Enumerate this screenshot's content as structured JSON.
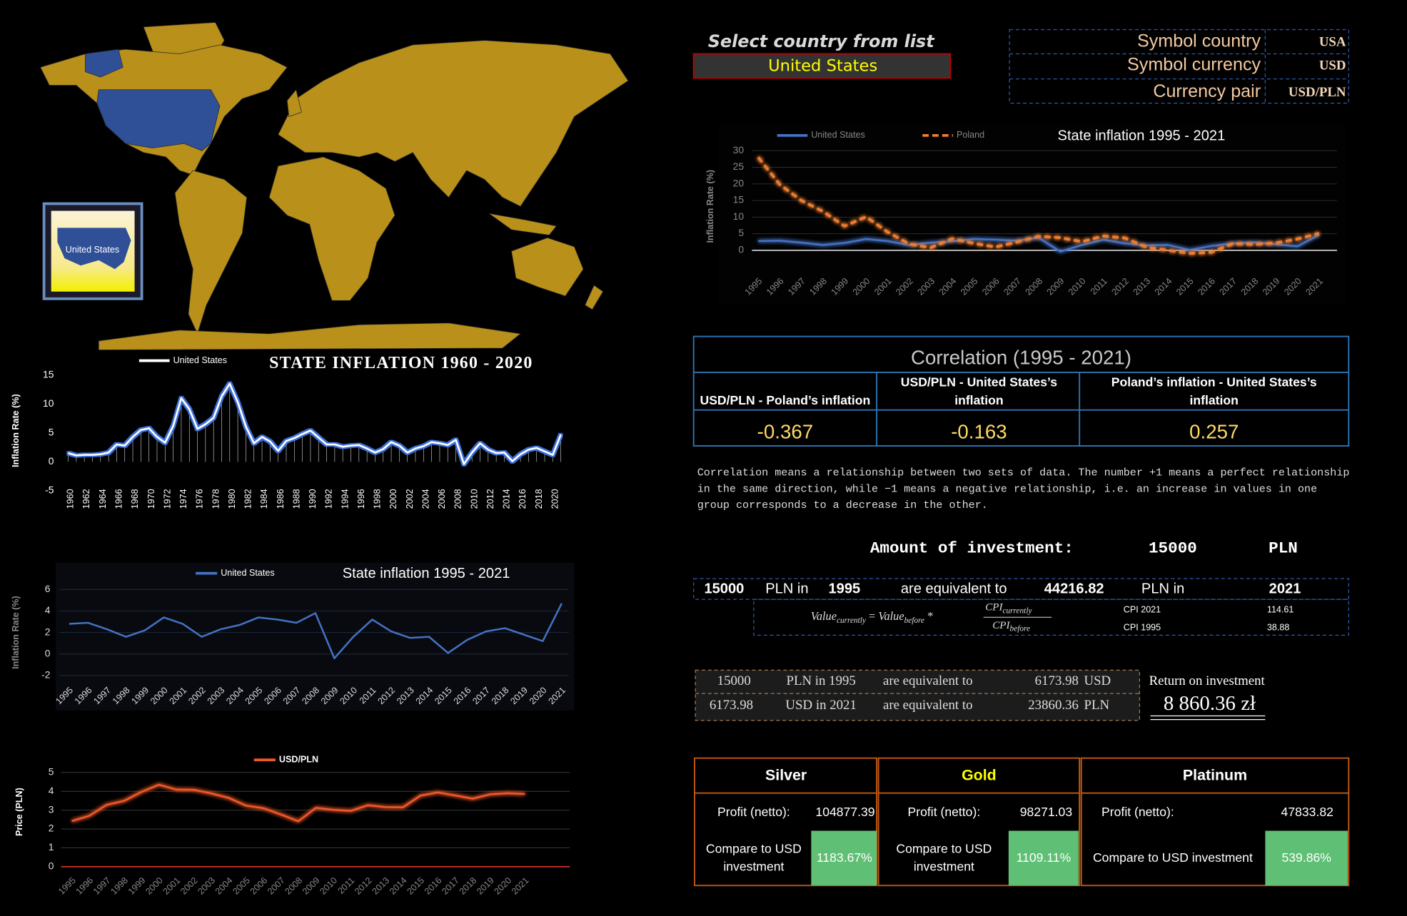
{
  "chart_data": [
    {
      "type": "line",
      "title": "STATE INFLATION 1960 - 2020",
      "y_label": "Inflation Rate (%)",
      "categories": [
        "1960",
        null,
        "1962",
        null,
        "1964",
        null,
        "1966",
        null,
        "1968",
        null,
        "1970",
        null,
        "1972",
        null,
        "1974",
        null,
        "1976",
        null,
        "1978",
        null,
        "1980",
        null,
        "1982",
        null,
        "1984",
        null,
        "1986",
        null,
        "1988",
        null,
        "1990",
        null,
        "1992",
        null,
        "1994",
        null,
        "1996",
        null,
        "1998",
        null,
        "2000",
        null,
        "2002",
        null,
        "2004",
        null,
        "2006",
        null,
        "2008",
        null,
        "2010",
        null,
        "2012",
        null,
        "2014",
        null,
        "2016",
        null,
        "2018",
        null,
        "2020",
        null
      ],
      "series": [
        {
          "name": "United States",
          "color": "#ffffff",
          "values": [
            1.5,
            1.1,
            1.2,
            1.2,
            1.3,
            1.6,
            3.0,
            2.8,
            4.3,
            5.5,
            5.8,
            4.3,
            3.3,
            6.2,
            11.0,
            9.1,
            5.7,
            6.5,
            7.6,
            11.3,
            13.5,
            10.3,
            6.1,
            3.2,
            4.3,
            3.5,
            1.9,
            3.6,
            4.1,
            4.8,
            5.4,
            4.2,
            3.0,
            3.0,
            2.6,
            2.8,
            2.9,
            2.3,
            1.6,
            2.2,
            3.4,
            2.8,
            1.6,
            2.3,
            2.7,
            3.4,
            3.2,
            2.9,
            3.8,
            -0.4,
            1.6,
            3.2,
            2.1,
            1.5,
            1.6,
            0.1,
            1.3,
            2.1,
            2.4,
            1.8,
            1.2,
            4.7
          ]
        }
      ],
      "ylim": [
        -5,
        15
      ],
      "yticks": [
        -5,
        0,
        5,
        10,
        15
      ],
      "grid": false,
      "drop_lines": true
    },
    {
      "type": "line",
      "title": "State inflation 1995 - 2021",
      "y_label": "Inflation Rate (%)",
      "categories": [
        "1995",
        "1996",
        "1997",
        "1998",
        "1999",
        "2000",
        "2001",
        "2002",
        "2003",
        "2004",
        "2005",
        "2006",
        "2007",
        "2008",
        "2009",
        "2010",
        "2011",
        "2012",
        "2013",
        "2014",
        "2015",
        "2016",
        "2017",
        "2018",
        "2019",
        "2020",
        "2021"
      ],
      "series": [
        {
          "name": "United States",
          "color": "#4472c4",
          "values": [
            2.8,
            2.9,
            2.3,
            1.6,
            2.2,
            3.4,
            2.8,
            1.6,
            2.3,
            2.7,
            3.4,
            3.2,
            2.9,
            3.8,
            -0.4,
            1.6,
            3.2,
            2.1,
            1.5,
            1.6,
            0.1,
            1.3,
            2.1,
            2.4,
            1.8,
            1.2,
            4.7
          ]
        }
      ],
      "ylim": [
        -2,
        6
      ],
      "yticks": [
        -2,
        0,
        2,
        4,
        6
      ],
      "grid": true
    },
    {
      "type": "line",
      "title": "State inflation 1995 - 2021",
      "y_label": "Inflation Rate (%)",
      "categories": [
        "1995",
        "1996",
        "1997",
        "1998",
        "1999",
        "2000",
        "2001",
        "2002",
        "2003",
        "2004",
        "2005",
        "2006",
        "2007",
        "2008",
        "2009",
        "2010",
        "2011",
        "2012",
        "2013",
        "2014",
        "2015",
        "2016",
        "2017",
        "2018",
        "2019",
        "2020",
        "2021"
      ],
      "series": [
        {
          "name": "United States",
          "color": "#4472c4",
          "values": [
            2.8,
            2.9,
            2.3,
            1.6,
            2.2,
            3.4,
            2.8,
            1.6,
            2.3,
            2.7,
            3.4,
            3.2,
            2.9,
            3.8,
            -0.4,
            1.6,
            3.2,
            2.1,
            1.5,
            1.6,
            0.1,
            1.3,
            2.1,
            2.4,
            1.8,
            1.2,
            4.7
          ]
        },
        {
          "name": "Poland",
          "color": "#ed7d31",
          "dashed": true,
          "values": [
            28.0,
            19.8,
            15.0,
            11.7,
            7.3,
            10.1,
            5.5,
            1.9,
            0.8,
            3.5,
            2.1,
            1.0,
            2.5,
            4.2,
            3.8,
            2.6,
            4.3,
            3.7,
            0.9,
            0.0,
            -0.9,
            -0.6,
            2.0,
            1.8,
            2.2,
            3.4,
            5.1
          ]
        }
      ],
      "ylim": [
        -5,
        30
      ],
      "yticks": [
        0,
        5,
        10,
        15,
        20,
        25,
        30
      ],
      "grid": true
    },
    {
      "type": "line",
      "y_label": "Price (PLN)",
      "categories": [
        "1995",
        "1996",
        "1997",
        "1998",
        "1999",
        "2000",
        "2001",
        "2002",
        "2003",
        "2004",
        "2005",
        "2006",
        "2007",
        "2008",
        "2009",
        "2010",
        "2011",
        "2012",
        "2013",
        "2014",
        "2015",
        "2016",
        "2017",
        "2018",
        "2019",
        "2020",
        "2021"
      ],
      "series": [
        {
          "name": "USD/PLN",
          "color": "#f0582a",
          "values": [
            2.42,
            2.7,
            3.28,
            3.49,
            3.97,
            4.35,
            4.09,
            4.08,
            3.89,
            3.65,
            3.24,
            3.1,
            2.77,
            2.41,
            3.12,
            3.02,
            2.96,
            3.26,
            3.16,
            3.15,
            3.77,
            3.94,
            3.78,
            3.61,
            3.84,
            3.9,
            3.86
          ]
        }
      ],
      "ylim": [
        0,
        5
      ],
      "yticks": [
        0,
        1,
        2,
        3,
        4,
        5
      ],
      "grid": true
    }
  ],
  "map": {
    "inset_label": "United States"
  },
  "selector": {
    "label": "Select country from list",
    "value": "United States"
  },
  "symbols": [
    [
      "Symbol country",
      "USA"
    ],
    [
      "Symbol currency",
      "USD"
    ],
    [
      "Currency pair",
      "USD/PLN"
    ]
  ],
  "correlation": {
    "title": "Correlation (1995 - 2021)",
    "headers": [
      [
        "USD/PLN - Poland’s inflation"
      ],
      [
        "USD/PLN - United States’s",
        "inflation"
      ],
      [
        "Poland’s inflation - United States’s",
        "inflation"
      ]
    ],
    "values": [
      -0.367,
      -0.163,
      0.257
    ]
  },
  "note": [
    "Correlation means a relationship between two sets of data. The number +1 means a perfect relationship",
    "in the same direction, while −1 means a negative relationship, i.e. an increase in values in one",
    "group corresponds to a decrease in the other."
  ],
  "investment": {
    "label": "Amount of investment:",
    "amount": 15000,
    "currency": "PLN"
  },
  "equivalence": [
    "15000",
    "PLN in",
    "1995",
    "are equivalent to",
    "44216.82",
    "PLN in",
    "2021"
  ],
  "formula": {
    "lhs": "Value",
    "lhs_sub": "currently",
    "equals": " = ",
    "rhs": "Value",
    "rhs_sub": "before",
    "times": " * ",
    "num": "CPI",
    "num_sub": "currently",
    "den": "CPI",
    "den_sub": "before"
  },
  "cpi": [
    [
      "CPI 2021",
      114.61
    ],
    [
      "CPI 1995",
      38.88
    ]
  ],
  "conversion": [
    [
      "15000",
      "PLN  in 1995",
      "are equivalent to",
      "6173.98",
      "USD"
    ],
    [
      "6173.98",
      "USD  in 2021",
      "are equivalent to",
      "23860.36",
      "PLN"
    ]
  ],
  "return": {
    "label": "Return on investment",
    "value": "8 860.36 zł"
  },
  "metals": [
    {
      "name": "Silver",
      "profit_label": "Profit (netto):",
      "profit": 104877.39,
      "compare_label": [
        "Compare to USD",
        "investment"
      ],
      "compare": "1183.67%"
    },
    {
      "name": "Gold",
      "profit_label": "Profit (netto):",
      "profit": 98271.03,
      "compare_label": [
        "Compare to USD",
        "investment"
      ],
      "compare": "1109.11%"
    },
    {
      "name": "Platinum",
      "profit_label": "Profit (netto):",
      "profit": 47833.82,
      "compare_label": [
        "Compare to USD investment"
      ],
      "compare": "539.86%"
    }
  ]
}
